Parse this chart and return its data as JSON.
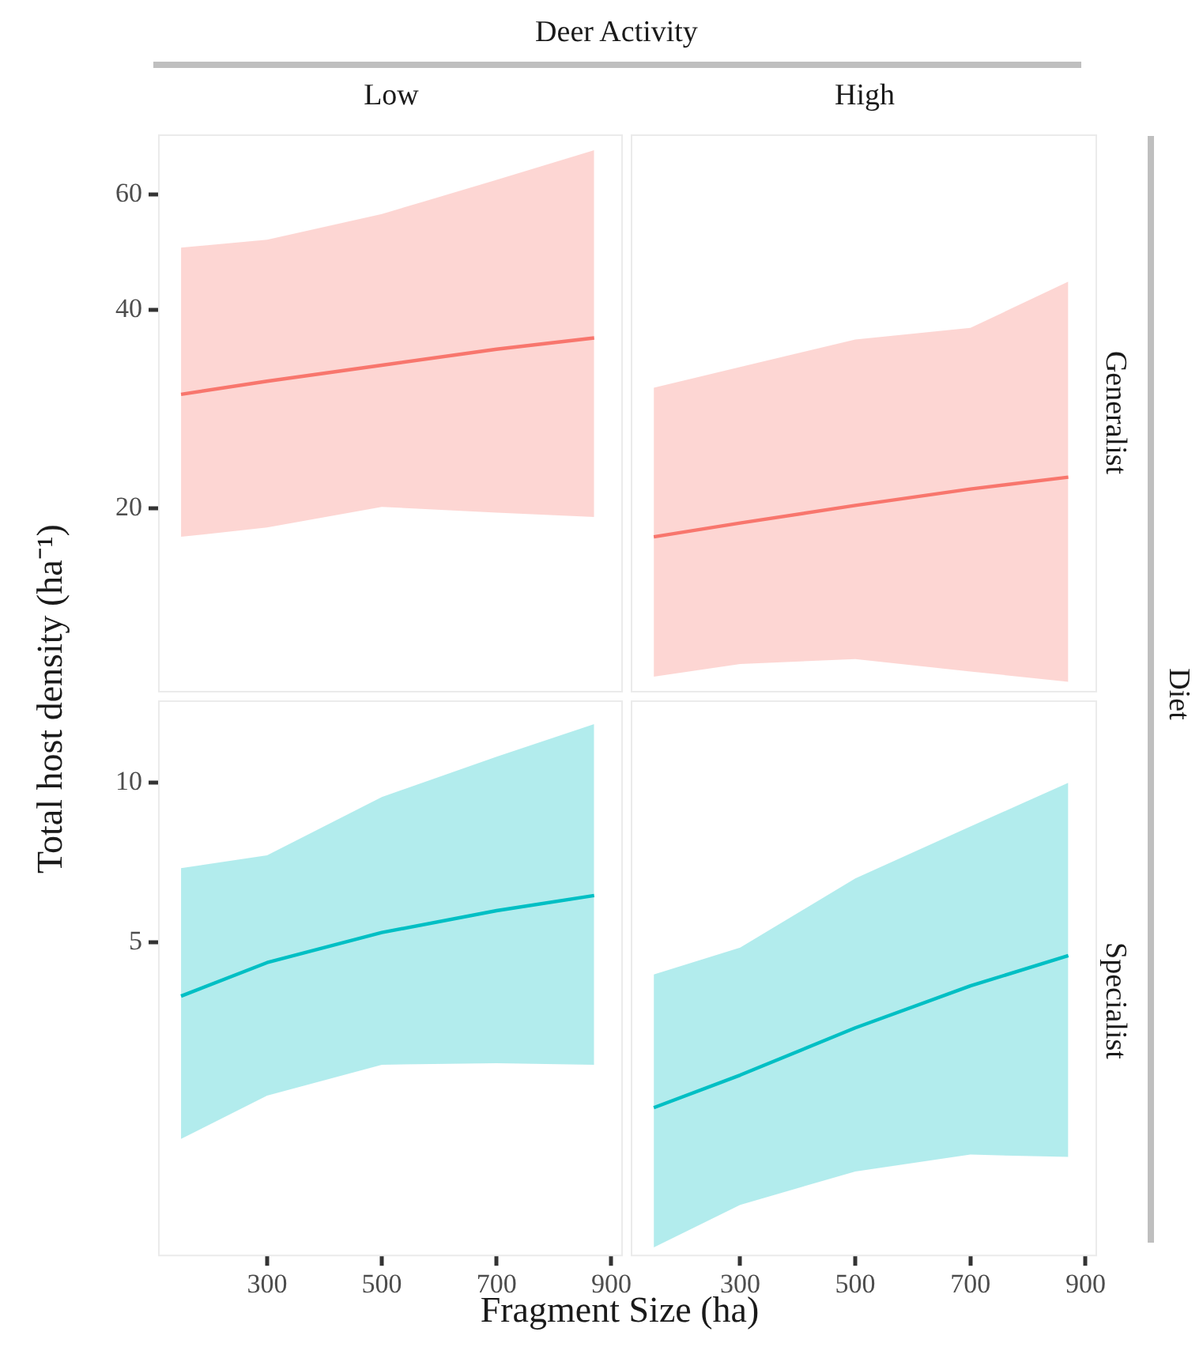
{
  "chart_data": [
    {
      "type": "line",
      "title": "Low",
      "ylabel": "Total host density (ha⁻¹)",
      "annotations": [
        "Deer Activity"
      ],
      "log": true,
      "marker": "none",
      "tick_labels": "y",
      "xlim": [
        110,
        920
      ],
      "ylim": [
        10.5,
        74
      ],
      "yticks": [
        20,
        40,
        60
      ],
      "x": [
        150,
        300,
        500,
        700,
        870
      ],
      "series": [
        {
          "color": "#f8766d",
          "values": [
            29.8,
            31.2,
            33.0,
            34.9,
            36.3
          ],
          "lower": [
            18.1,
            18.7,
            20.1,
            19.7,
            19.4
          ],
          "upper": [
            49.8,
            51.2,
            56,
            63.1,
            70
          ]
        }
      ]
    },
    {
      "type": "line",
      "title": "High",
      "y2label": "Generalist",
      "annotations": [
        "Diet"
      ],
      "log": true,
      "marker": "none",
      "tick_labels": false,
      "xlim": [
        110,
        920
      ],
      "ylim": [
        10.5,
        74
      ],
      "x": [
        150,
        300,
        500,
        700,
        870
      ],
      "series": [
        {
          "color": "#f8766d",
          "values": [
            18.1,
            19.0,
            20.2,
            21.4,
            22.3
          ],
          "lower": [
            11.1,
            11.6,
            11.8,
            11.3,
            10.9
          ],
          "upper": [
            30.5,
            32.8,
            36.1,
            37.6,
            44.2
          ]
        }
      ]
    },
    {
      "type": "line",
      "xlabel": "Fragment Size (ha)",
      "log": true,
      "marker": "none",
      "xlim": [
        110,
        920
      ],
      "xticks": [
        300,
        500,
        700,
        900
      ],
      "ylim": [
        1.28,
        14.3
      ],
      "yticks": [
        5,
        10
      ],
      "x": [
        150,
        300,
        500,
        700,
        870
      ],
      "series": [
        {
          "color": "#00bfc4",
          "values": [
            3.96,
            4.58,
            5.22,
            5.74,
            6.13
          ],
          "lower": [
            2.13,
            2.57,
            2.94,
            2.96,
            2.94
          ],
          "upper": [
            6.9,
            7.3,
            9.4,
            11.2,
            12.9
          ]
        }
      ]
    },
    {
      "type": "line",
      "y2label": "Specialist",
      "log": true,
      "marker": "none",
      "tick_labels": "x",
      "xlim": [
        110,
        920
      ],
      "xticks": [
        300,
        500,
        700,
        900
      ],
      "ylim": [
        1.28,
        14.3
      ],
      "x": [
        150,
        300,
        500,
        700,
        870
      ],
      "series": [
        {
          "color": "#00bfc4",
          "values": [
            2.44,
            2.81,
            3.45,
            4.14,
            4.72
          ],
          "lower": [
            1.33,
            1.6,
            1.85,
            1.99,
            1.97
          ],
          "upper": [
            4.35,
            4.89,
            6.6,
            8.27,
            10.0
          ]
        }
      ]
    }
  ]
}
